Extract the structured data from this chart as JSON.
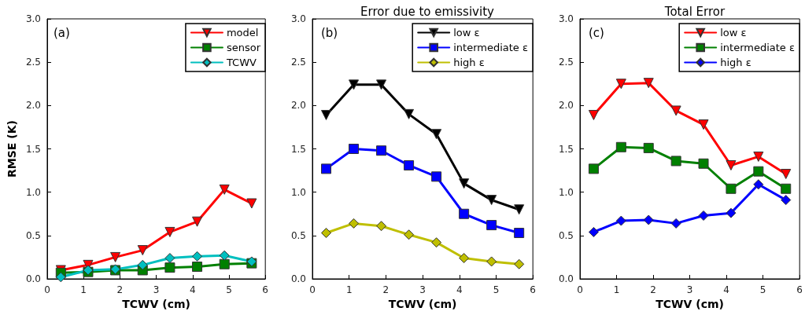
{
  "chart_data": [
    {
      "type": "line",
      "ylabel": "RMSE (K)",
      "xlabel": "TCWV (cm)",
      "annotations": [
        "(a)"
      ],
      "x": [
        0.375,
        1.125,
        1.875,
        2.625,
        3.375,
        4.125,
        4.875,
        5.625
      ],
      "xlim": [
        0,
        6
      ],
      "xticks": [
        0,
        1,
        2,
        3,
        4,
        5,
        6
      ],
      "ylim": [
        0,
        3
      ],
      "yticks": [
        {
          "value": 0,
          "label": "0.0"
        },
        0.5,
        {
          "value": 1,
          "label": "1.0"
        },
        1.5,
        {
          "value": 2,
          "label": "2.0"
        },
        2.5,
        {
          "value": 3,
          "label": "3.0"
        }
      ],
      "grid": false,
      "legend": "top right",
      "series": [
        {
          "name": "model",
          "color": "#ff0000",
          "marker": "triangle",
          "values": [
            0.1,
            0.16,
            0.25,
            0.33,
            0.54,
            0.66,
            1.03,
            0.87
          ]
        },
        {
          "name": "sensor",
          "color": "#008000",
          "marker": "square",
          "values": [
            0.07,
            0.08,
            0.1,
            0.1,
            0.13,
            0.14,
            0.17,
            0.18
          ]
        },
        {
          "name": "TCWV",
          "color": "#00bfbf",
          "marker": "diamond",
          "values": [
            0.02,
            0.1,
            0.11,
            0.16,
            0.24,
            0.26,
            0.27,
            0.2
          ]
        }
      ]
    },
    {
      "type": "line",
      "title": "Error due to emissivity",
      "xlabel": "TCWV (cm)",
      "annotations": [
        "(b)"
      ],
      "x": [
        0.375,
        1.125,
        1.875,
        2.625,
        3.375,
        4.125,
        4.875,
        5.625
      ],
      "xlim": [
        0,
        6
      ],
      "xticks": [
        0,
        1,
        2,
        3,
        4,
        5,
        6
      ],
      "ylim": [
        0,
        3
      ],
      "yticks": [
        {
          "value": 0,
          "label": "0.0"
        },
        0.5,
        {
          "value": 1,
          "label": "1.0"
        },
        1.5,
        {
          "value": 2,
          "label": "2.0"
        },
        2.5,
        {
          "value": 3,
          "label": "3.0"
        }
      ],
      "grid": false,
      "legend": "top right",
      "series": [
        {
          "name": "low ε",
          "color": "#000000",
          "marker": "triangle",
          "values": [
            1.89,
            2.24,
            2.24,
            1.9,
            1.67,
            1.1,
            0.91,
            0.8
          ]
        },
        {
          "name": "intermediate ε",
          "color": "#0000ff",
          "marker": "square",
          "values": [
            1.27,
            1.5,
            1.48,
            1.31,
            1.18,
            0.75,
            0.62,
            0.53
          ]
        },
        {
          "name": "high ε",
          "color": "#bfbf00",
          "marker": "diamond",
          "values": [
            0.53,
            0.64,
            0.61,
            0.51,
            0.42,
            0.24,
            0.2,
            0.17
          ]
        }
      ]
    },
    {
      "type": "line",
      "title": "Total Error",
      "xlabel": "TCWV (cm)",
      "annotations": [
        "(c)"
      ],
      "x": [
        0.375,
        1.125,
        1.875,
        2.625,
        3.375,
        4.125,
        4.875,
        5.625
      ],
      "xlim": [
        0,
        6
      ],
      "xticks": [
        0,
        1,
        2,
        3,
        4,
        5,
        6
      ],
      "ylim": [
        0,
        3
      ],
      "yticks": [
        {
          "value": 0,
          "label": "0.0"
        },
        0.5,
        {
          "value": 1,
          "label": "1.0"
        },
        1.5,
        {
          "value": 2,
          "label": "2.0"
        },
        2.5,
        {
          "value": 3,
          "label": "3.0"
        }
      ],
      "grid": false,
      "legend": "top right",
      "series": [
        {
          "name": "low ε",
          "color": "#ff0000",
          "marker": "triangle",
          "values": [
            1.89,
            2.25,
            2.26,
            1.94,
            1.78,
            1.31,
            1.41,
            1.21
          ]
        },
        {
          "name": "intermediate ε",
          "color": "#008000",
          "marker": "square",
          "values": [
            1.27,
            1.52,
            1.51,
            1.36,
            1.33,
            1.04,
            1.24,
            1.04
          ]
        },
        {
          "name": "high ε",
          "color": "#0000ff",
          "marker": "diamond",
          "values": [
            0.54,
            0.67,
            0.68,
            0.64,
            0.73,
            0.76,
            1.09,
            0.91
          ]
        }
      ]
    }
  ]
}
